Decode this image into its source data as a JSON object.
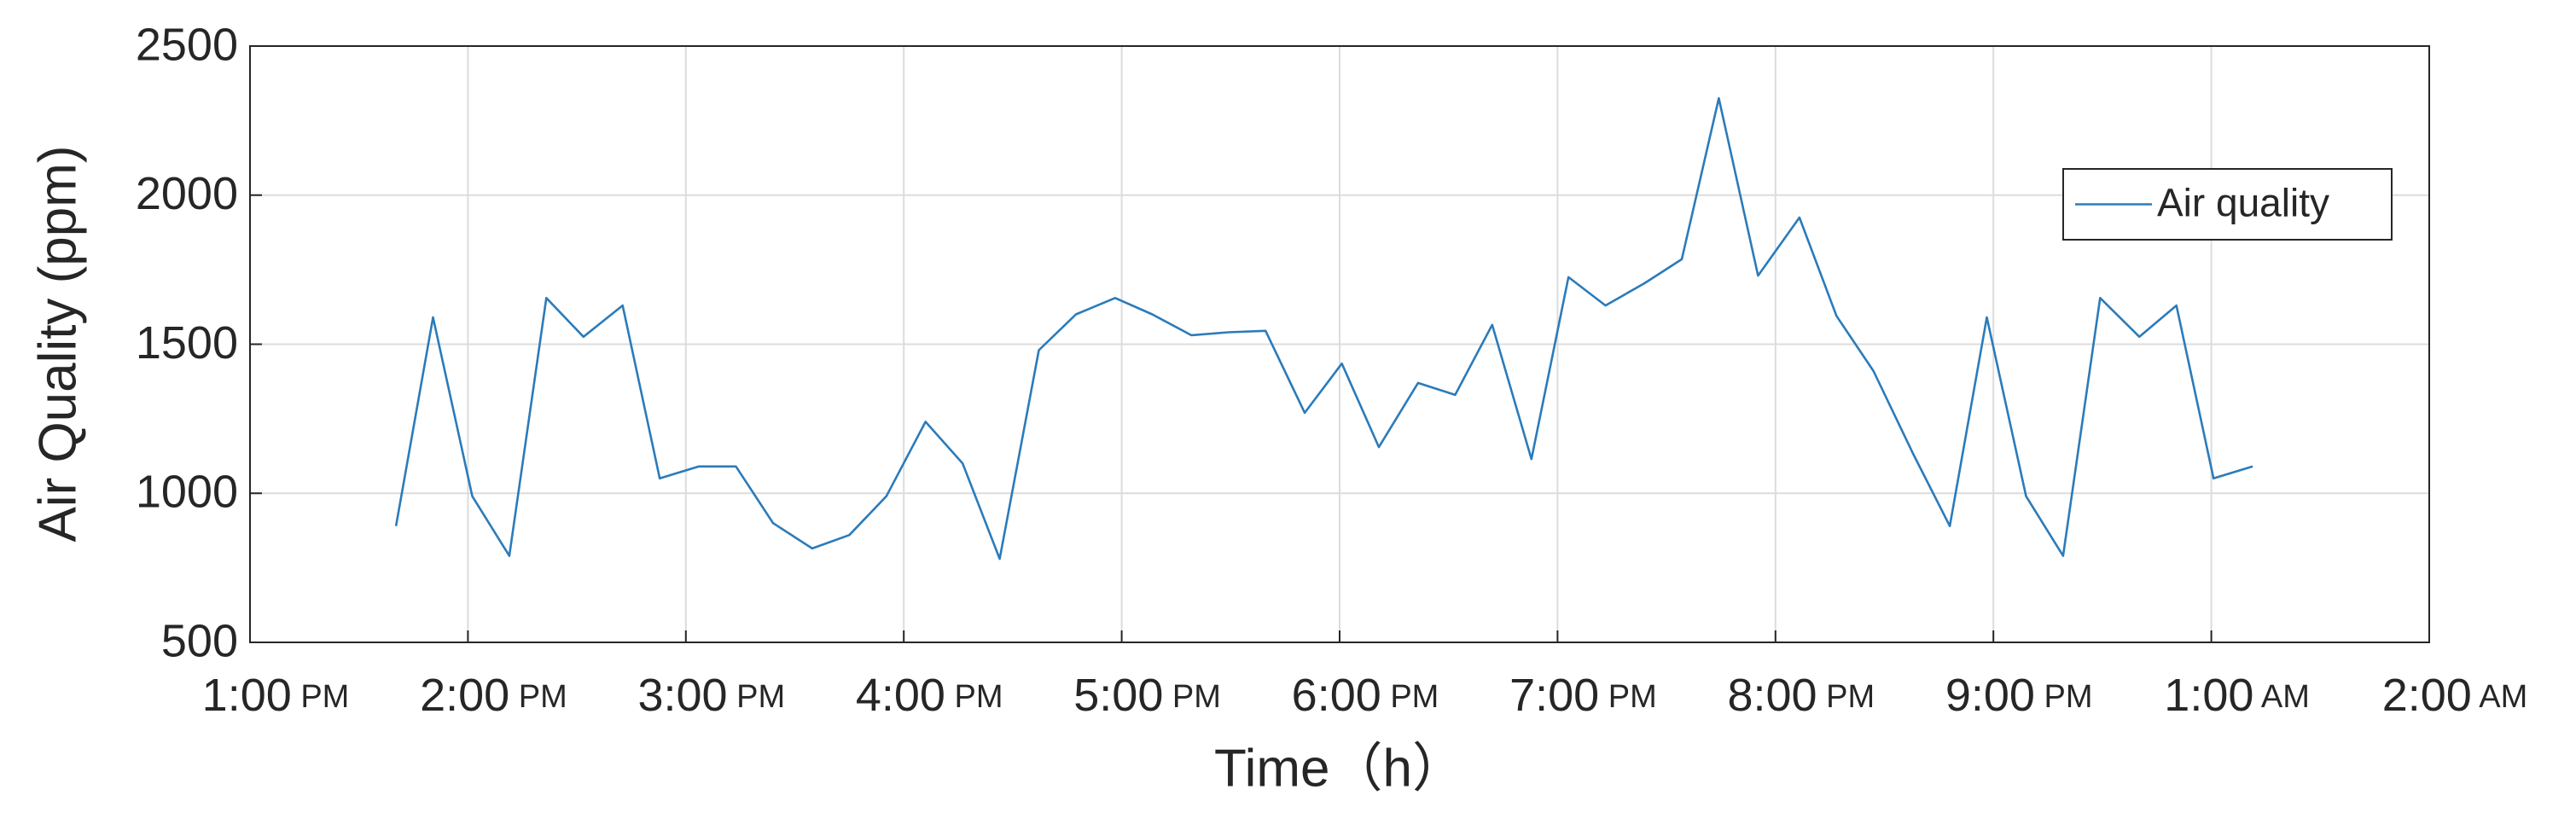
{
  "chart_data": {
    "type": "line",
    "xlabel": "Time（h）",
    "ylabel": "Air Quality (ppm)",
    "x": [
      0.67,
      0.84,
      1.02,
      1.19,
      1.36,
      1.53,
      1.71,
      1.88,
      2.06,
      2.23,
      2.4,
      2.58,
      2.75,
      2.92,
      3.1,
      3.27,
      3.44,
      3.62,
      3.79,
      3.97,
      4.14,
      4.32,
      4.49,
      4.66,
      4.84,
      5.01,
      5.18,
      5.36,
      5.53,
      5.7,
      5.88,
      6.05,
      6.22,
      6.4,
      6.57,
      6.74,
      6.92,
      7.11,
      7.28,
      7.45,
      7.63,
      7.8,
      7.97,
      8.15,
      8.32,
      8.49,
      8.67,
      8.84,
      9.01,
      9.19
    ],
    "series": [
      {
        "name": "Air quality",
        "color": "#2b7bba",
        "values": [
          890,
          1590,
          990,
          790,
          1655,
          1525,
          1630,
          1050,
          1090,
          1090,
          900,
          815,
          860,
          990,
          1240,
          1100,
          780,
          1480,
          1600,
          1655,
          1600,
          1530,
          1540,
          1545,
          1270,
          1435,
          1155,
          1370,
          1330,
          1565,
          1115,
          1725,
          1630,
          1705,
          1785,
          2325,
          1730,
          1925,
          1595,
          1410,
          1135,
          890,
          1590,
          990,
          790,
          1655,
          1525,
          1630,
          1050,
          1090
        ]
      }
    ],
    "xlim": [
      0,
      10
    ],
    "xticks": [
      {
        "value": 0,
        "label": "1:00 PM"
      },
      {
        "value": 1,
        "label": "2:00 PM"
      },
      {
        "value": 2,
        "label": "3:00 PM"
      },
      {
        "value": 3,
        "label": "4:00 PM"
      },
      {
        "value": 4,
        "label": "5:00 PM"
      },
      {
        "value": 5,
        "label": "6:00 PM"
      },
      {
        "value": 6,
        "label": "7:00 PM"
      },
      {
        "value": 7,
        "label": "8:00 PM"
      },
      {
        "value": 8,
        "label": "9:00 PM"
      },
      {
        "value": 9,
        "label": "1:00 AM"
      },
      {
        "value": 10,
        "label": "2:00 AM"
      }
    ],
    "ylim": [
      500,
      2500
    ],
    "yticks": [
      500,
      1000,
      1500,
      2000,
      2500
    ],
    "grid": true,
    "legend": "upper right"
  }
}
